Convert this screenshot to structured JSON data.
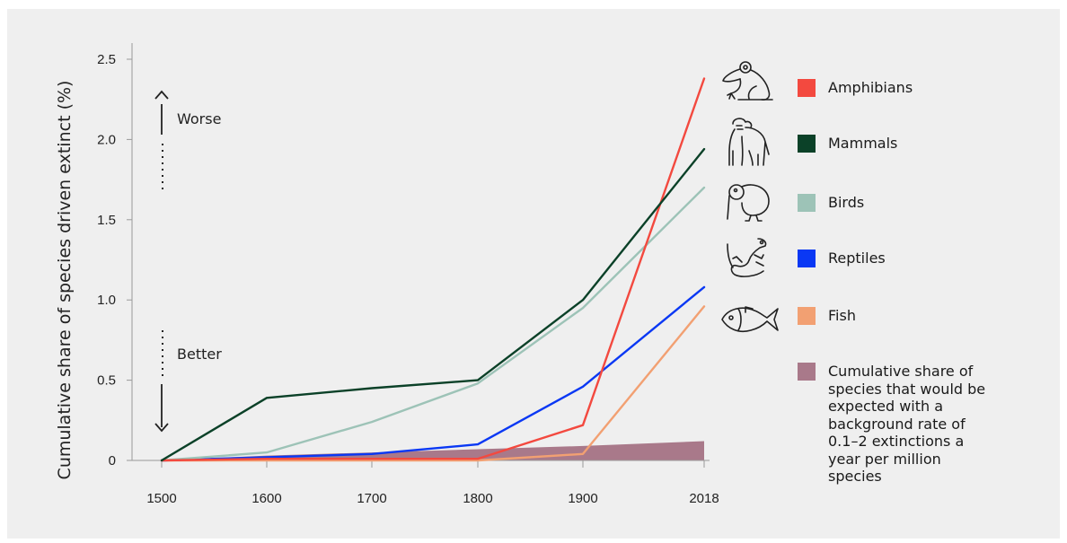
{
  "chart_data": {
    "type": "line",
    "ylabel": "Cumulative share of species driven extinct (%)",
    "xlabel": "",
    "x": [
      "1500",
      "1600",
      "1700",
      "1800",
      "1900",
      "2018"
    ],
    "yticks": [
      "0",
      "0.5",
      "1.0",
      "1.5",
      "2.0",
      "2.5"
    ],
    "ylim": [
      0,
      2.5
    ],
    "series": [
      {
        "name": "Amphibians",
        "color": "#f3493f",
        "values": [
          0,
          0.01,
          0.01,
          0.01,
          0.22,
          2.38
        ]
      },
      {
        "name": "Mammals",
        "color": "#0b4128",
        "values": [
          0,
          0.39,
          0.45,
          0.5,
          1.0,
          1.94
        ]
      },
      {
        "name": "Birds",
        "color": "#9dc3b7",
        "values": [
          0,
          0.05,
          0.24,
          0.48,
          0.95,
          1.7
        ]
      },
      {
        "name": "Reptiles",
        "color": "#0a38f4",
        "values": [
          0,
          0.02,
          0.04,
          0.1,
          0.46,
          1.08
        ]
      },
      {
        "name": "Fish",
        "color": "#f2a072",
        "values": [
          0,
          0,
          0,
          0,
          0.04,
          0.96
        ]
      }
    ],
    "background_band": {
      "name": "Cumulative share of species that would be expected with a background rate of 0.1–2 extinctions a year per million species",
      "color": "#a9798a",
      "upper": [
        0,
        0.03,
        0.05,
        0.07,
        0.09,
        0.12
      ]
    },
    "annotations": {
      "worse": "Worse",
      "better": "Better"
    },
    "legend_position": "right",
    "grid": false
  },
  "legend_icons": [
    "frog-icon",
    "gorilla-icon",
    "kiwi-bird-icon",
    "lizard-icon",
    "fish-icon"
  ]
}
